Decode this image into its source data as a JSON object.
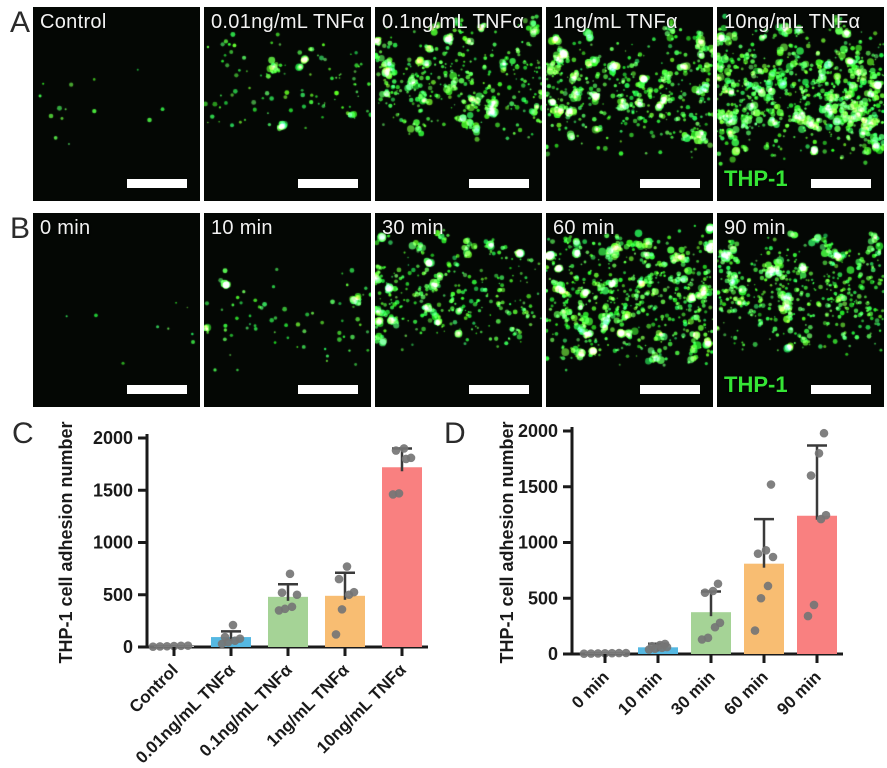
{
  "figure": {
    "panels": {
      "A": {
        "letter": "A",
        "thp1_label": "THP-1",
        "images": [
          {
            "label": "Control",
            "dots": 14,
            "blobs": 0,
            "bandTop": 0.25,
            "bandH": 0.65,
            "blobSize": 0
          },
          {
            "label": "0.01ng/mL TNFα",
            "dots": 95,
            "blobs": 5,
            "bandTop": 0.12,
            "bandH": 0.55,
            "blobSize": 6
          },
          {
            "label": "0.1ng/mL TNFα",
            "dots": 250,
            "blobs": 28,
            "bandTop": 0.08,
            "bandH": 0.62,
            "blobSize": 9
          },
          {
            "label": "1ng/mL TNFα",
            "dots": 310,
            "blobs": 32,
            "bandTop": 0.1,
            "bandH": 0.68,
            "blobSize": 9
          },
          {
            "label": "10ng/mL TNFα",
            "dots": 430,
            "blobs": 60,
            "bandTop": 0.08,
            "bandH": 0.74,
            "blobSize": 16
          }
        ]
      },
      "B": {
        "letter": "B",
        "thp1_label": "THP-1",
        "images": [
          {
            "label": "0 min",
            "dots": 9,
            "blobs": 0,
            "bandTop": 0.3,
            "bandH": 0.55,
            "blobSize": 0
          },
          {
            "label": "10 min",
            "dots": 65,
            "blobs": 3,
            "bandTop": 0.25,
            "bandH": 0.6,
            "blobSize": 5
          },
          {
            "label": "30 min",
            "dots": 250,
            "blobs": 22,
            "bandTop": 0.1,
            "bandH": 0.62,
            "blobSize": 8
          },
          {
            "label": "60 min",
            "dots": 440,
            "blobs": 46,
            "bandTop": 0.05,
            "bandH": 0.78,
            "blobSize": 10
          },
          {
            "label": "90 min",
            "dots": 370,
            "blobs": 26,
            "bandTop": 0.1,
            "bandH": 0.66,
            "blobSize": 8
          }
        ]
      },
      "C": {
        "letter": "C"
      },
      "D": {
        "letter": "D"
      }
    },
    "colors": {
      "fluorescence_green": "#35e535",
      "scale_bar": "#ffffff",
      "dot_gray": "#757575",
      "axis_black": "#1a1a1a"
    }
  },
  "chart_data": [
    {
      "type": "bar",
      "id": "C",
      "ylabel": "THP-1 cell adhesion number",
      "categories": [
        "Control",
        "0.01ng/mL TNFα",
        "0.1ng/mL TNFα",
        "1ng/mL TNFα",
        "10ng/mL TNFα"
      ],
      "means": [
        8,
        95,
        480,
        490,
        1720
      ],
      "error_top": [
        18,
        150,
        600,
        710,
        1900
      ],
      "points": [
        [
          3,
          5,
          7,
          9,
          11,
          13
        ],
        [
          30,
          45,
          60,
          80,
          95,
          210
        ],
        [
          350,
          365,
          385,
          500,
          520,
          700
        ],
        [
          120,
          360,
          500,
          525,
          650,
          770
        ],
        [
          1460,
          1470,
          1800,
          1810,
          1880,
          1900
        ]
      ],
      "bar_colors": [
        "#e2e2e2",
        "#55B8E2",
        "#A5D396",
        "#F8BD72",
        "#F98080"
      ],
      "ylim": [
        0,
        2000
      ],
      "yticks": [
        0,
        500,
        1000,
        1500,
        2000
      ],
      "grid": false,
      "legend": "none"
    },
    {
      "type": "bar",
      "id": "D",
      "ylabel": "THP-1 cell adhesion number",
      "categories": [
        "0 min",
        "10 min",
        "30 min",
        "60 min",
        "90 min"
      ],
      "means": [
        8,
        60,
        375,
        810,
        1240
      ],
      "error_top": [
        14,
        92,
        560,
        1210,
        1870
      ],
      "points": [
        [
          3,
          4,
          5,
          6,
          7,
          8,
          9
        ],
        [
          40,
          48,
          55,
          62,
          70,
          80,
          90
        ],
        [
          130,
          145,
          240,
          280,
          550,
          565,
          630
        ],
        [
          210,
          500,
          610,
          870,
          900,
          930,
          1520
        ],
        [
          340,
          440,
          1210,
          1245,
          1600,
          1800,
          1980
        ]
      ],
      "bar_colors": [
        "#e2e2e2",
        "#55B8E2",
        "#A5D396",
        "#F8BD72",
        "#F98080"
      ],
      "ylim": [
        0,
        2000
      ],
      "yticks": [
        0,
        500,
        1000,
        1500,
        2000
      ],
      "grid": false,
      "legend": "none"
    }
  ]
}
